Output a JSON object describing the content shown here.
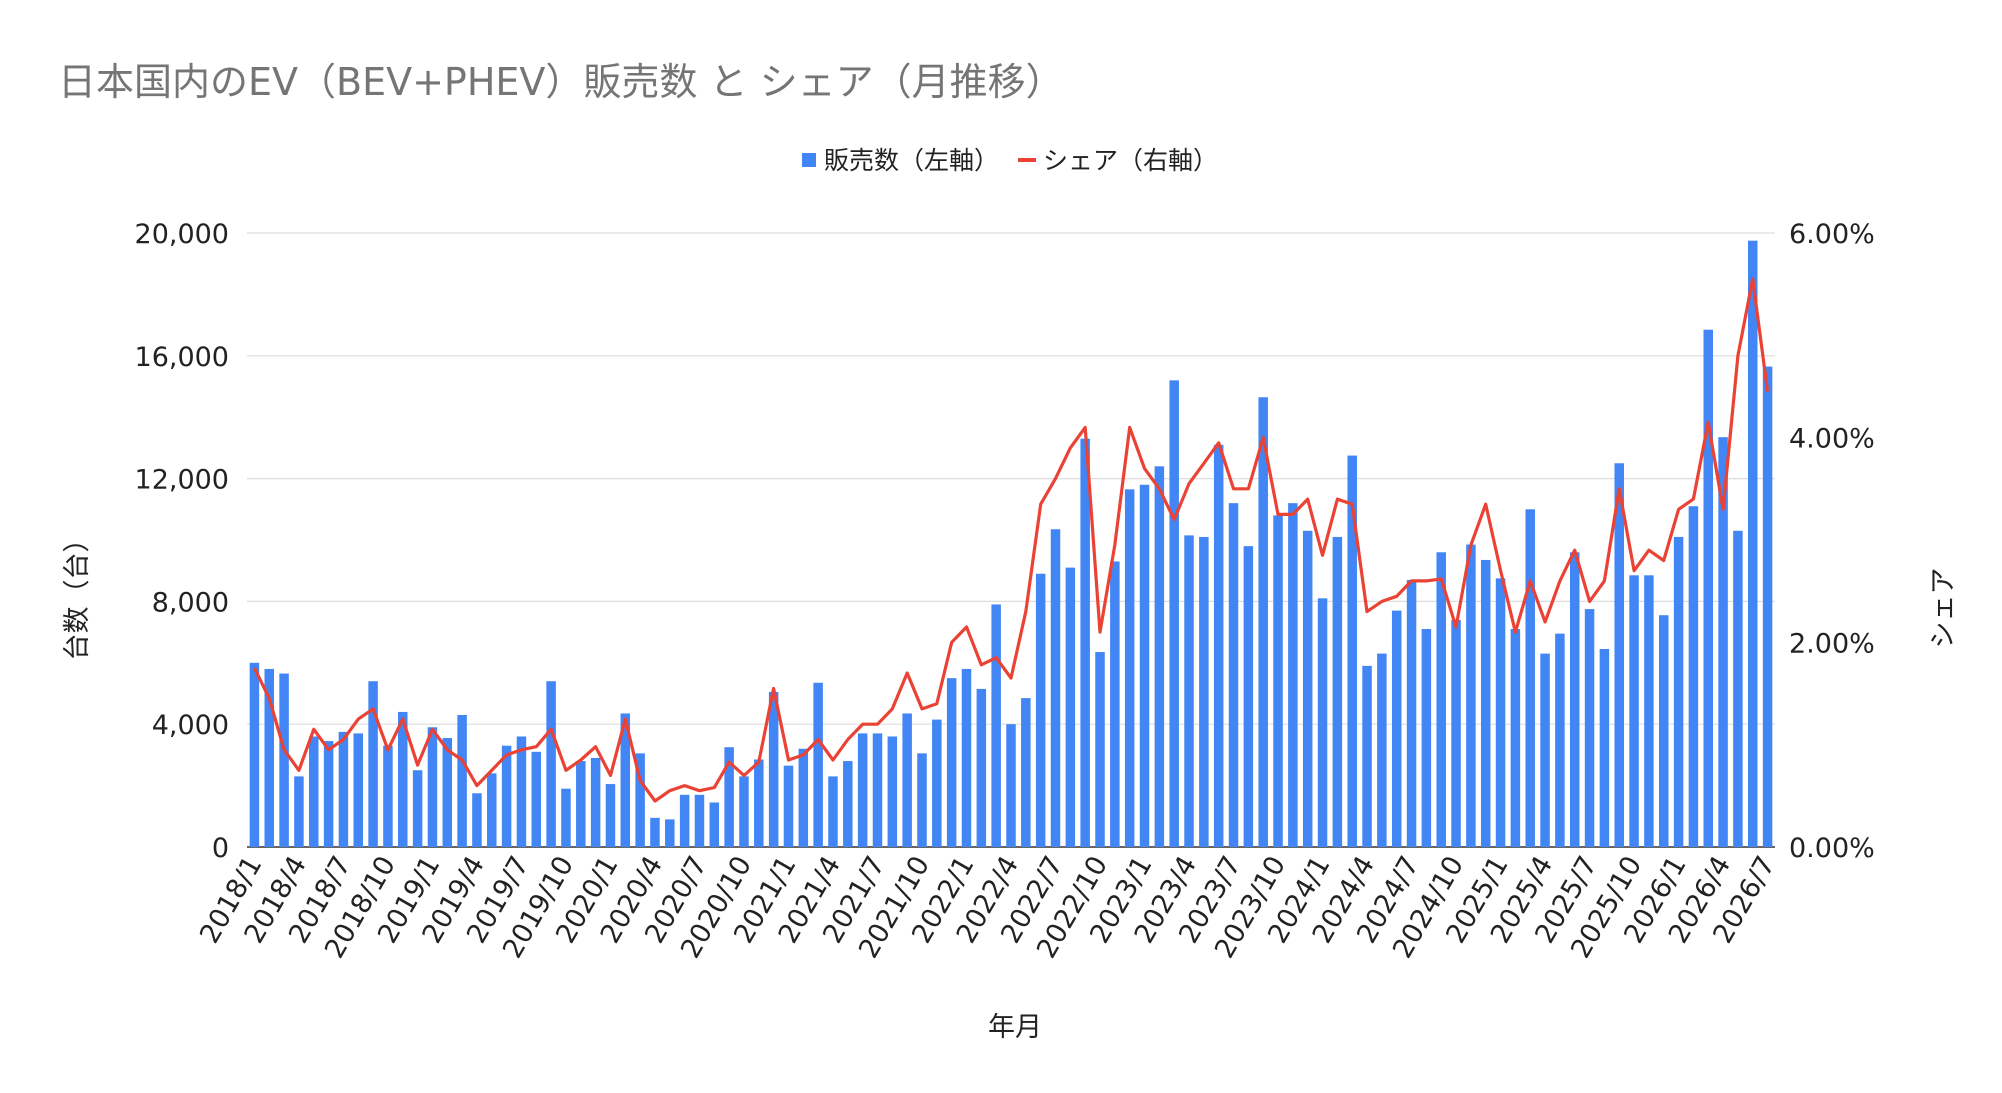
{
  "chart_data": {
    "type": "bar",
    "title": "日本国内のEV（BEV+PHEV）販売数 と シェア（月推移）",
    "xlabel": "年月",
    "ylabel": "台数（台）",
    "y2label": "シェア",
    "ylim": [
      0,
      20000
    ],
    "y2lim": [
      0,
      0.06
    ],
    "yticks": [
      "0",
      "4,000",
      "8,000",
      "12,000",
      "16,000",
      "20,000"
    ],
    "y2ticks": [
      "0.00%",
      "2.00%",
      "4.00%",
      "6.00%"
    ],
    "grid": true,
    "legend_position": "top-center",
    "categories": [
      "2018/1",
      "2018/2",
      "2018/3",
      "2018/4",
      "2018/5",
      "2018/6",
      "2018/7",
      "2018/8",
      "2018/9",
      "2018/10",
      "2018/11",
      "2018/12",
      "2019/1",
      "2019/2",
      "2019/3",
      "2019/4",
      "2019/5",
      "2019/6",
      "2019/7",
      "2019/8",
      "2019/9",
      "2019/10",
      "2019/11",
      "2019/12",
      "2020/1",
      "2020/2",
      "2020/3",
      "2020/4",
      "2020/5",
      "2020/6",
      "2020/7",
      "2020/8",
      "2020/9",
      "2020/10",
      "2020/11",
      "2020/12",
      "2021/1",
      "2021/2",
      "2021/3",
      "2021/4",
      "2021/5",
      "2021/6",
      "2021/7",
      "2021/8",
      "2021/9",
      "2021/10",
      "2021/11",
      "2021/12",
      "2022/1",
      "2022/2",
      "2022/3",
      "2022/4",
      "2022/5",
      "2022/6",
      "2022/7",
      "2022/8",
      "2022/9",
      "2022/10",
      "2022/11",
      "2022/12",
      "2023/1",
      "2023/2",
      "2023/3",
      "2023/4",
      "2023/5",
      "2023/6",
      "2023/7",
      "2023/8",
      "2023/9",
      "2023/10",
      "2023/11",
      "2023/12",
      "2024/1",
      "2024/2",
      "2024/3",
      "2024/4",
      "2024/5",
      "2024/6",
      "2024/7",
      "2024/8",
      "2024/9",
      "2024/10",
      "2024/11",
      "2024/12",
      "2025/1",
      "2025/2",
      "2025/3",
      "2025/4",
      "2025/5",
      "2025/6",
      "2025/7",
      "2025/8",
      "2025/9",
      "2025/10",
      "2025/11",
      "2025/12",
      "2026/1",
      "2026/2",
      "2026/3",
      "2026/4",
      "2026/5",
      "2026/6",
      "2026/7"
    ],
    "xtick_labels": [
      "2018/1",
      "2018/4",
      "2018/7",
      "2018/10",
      "2019/1",
      "2019/4",
      "2019/7",
      "2019/10",
      "2020/1",
      "2020/4",
      "2020/7",
      "2020/10",
      "2021/1",
      "2021/4",
      "2021/7",
      "2021/10",
      "2022/1",
      "2022/4",
      "2022/7",
      "2022/10",
      "2023/1",
      "2023/4",
      "2023/7",
      "2023/10",
      "2024/1",
      "2024/4",
      "2024/7",
      "2024/10",
      "2025/1",
      "2025/4",
      "2025/7",
      "2025/10",
      "2026/1",
      "2026/4",
      "2026/7"
    ],
    "series": [
      {
        "name": "販売数（左軸）",
        "type": "bar",
        "axis": "left",
        "color": "#4285f4",
        "values": [
          6000,
          5800,
          5650,
          2300,
          3600,
          3450,
          3750,
          3700,
          5400,
          3300,
          4400,
          2500,
          3900,
          3550,
          4300,
          1750,
          2400,
          3300,
          3600,
          3100,
          5400,
          1900,
          2800,
          2900,
          2050,
          4350,
          3050,
          950,
          900,
          1700,
          1700,
          1450,
          3250,
          2300,
          2850,
          5050,
          2650,
          3200,
          5350,
          2300,
          2800,
          3700,
          3700,
          3600,
          4350,
          3050,
          4150,
          5500,
          5800,
          5150,
          7900,
          4000,
          4850,
          8900,
          10350,
          9100,
          13300,
          6350,
          9300,
          11650,
          11800,
          12400,
          15200,
          10150,
          10100,
          13100,
          11200,
          9800,
          14650,
          10800,
          11200,
          10300,
          8100,
          10100,
          12750,
          5900,
          6300,
          7700,
          8700,
          7100,
          9600,
          7400,
          9850,
          9350,
          8750,
          7100,
          11000,
          6300,
          6950,
          9600,
          7750,
          6450,
          12500,
          8850,
          8850,
          7550,
          10100,
          11100,
          16850,
          13350,
          10300,
          19750,
          15650
        ]
      },
      {
        "name": "シェア（右軸）",
        "type": "line",
        "axis": "right",
        "color": "#ea4335",
        "values": [
          0.0175,
          0.0145,
          0.0095,
          0.0075,
          0.0115,
          0.0095,
          0.0105,
          0.0125,
          0.0135,
          0.0095,
          0.0125,
          0.008,
          0.0115,
          0.0095,
          0.0085,
          0.006,
          0.0075,
          0.009,
          0.0095,
          0.0098,
          0.0115,
          0.0075,
          0.0085,
          0.0098,
          0.007,
          0.0125,
          0.0065,
          0.0045,
          0.0055,
          0.006,
          0.0055,
          0.0058,
          0.0083,
          0.007,
          0.0083,
          0.0155,
          0.0085,
          0.009,
          0.0105,
          0.0085,
          0.0105,
          0.012,
          0.012,
          0.0135,
          0.017,
          0.0135,
          0.014,
          0.02,
          0.0215,
          0.0178,
          0.0185,
          0.0165,
          0.023,
          0.0335,
          0.036,
          0.039,
          0.041,
          0.021,
          0.0295,
          0.041,
          0.037,
          0.035,
          0.032,
          0.0355,
          0.0375,
          0.0395,
          0.035,
          0.035,
          0.04,
          0.0325,
          0.0325,
          0.034,
          0.0285,
          0.034,
          0.0335,
          0.023,
          0.024,
          0.0245,
          0.026,
          0.026,
          0.0262,
          0.0215,
          0.0295,
          0.0335,
          0.027,
          0.021,
          0.026,
          0.022,
          0.026,
          0.029,
          0.024,
          0.026,
          0.035,
          0.027,
          0.029,
          0.028,
          0.033,
          0.034,
          0.0415,
          0.033,
          0.048,
          0.0555,
          0.0445
        ]
      }
    ]
  }
}
